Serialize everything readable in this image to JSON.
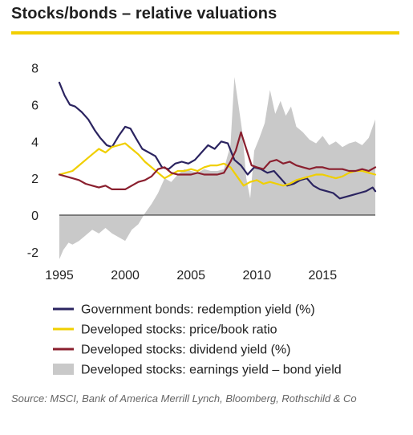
{
  "header": {
    "title": "Stocks/bonds – relative valuations"
  },
  "colors": {
    "title_rule": "#f2cf00",
    "gov_bonds": "#2b2460",
    "pb": "#f0cf00",
    "dividend": "#8a1f2e",
    "earnings_gap": "#c9c9c9",
    "zero_line": "#222222"
  },
  "chart_data": {
    "type": "line",
    "title": "Stocks/bonds – relative valuations",
    "xlabel": "",
    "ylabel": "",
    "x_ticks": [
      1995,
      2000,
      2005,
      2010,
      2015
    ],
    "y_ticks": [
      -2,
      0,
      2,
      4,
      6,
      8
    ],
    "xlim": [
      1995,
      2019
    ],
    "ylim": [
      -2.4,
      8.2
    ],
    "grid": false,
    "legend_position": "bottom",
    "series": [
      {
        "name": "Government bonds: redemption yield (%)",
        "color": "#2b2460",
        "x": [
          1995.0,
          1995.4,
          1995.8,
          1996.2,
          1996.7,
          1997.2,
          1997.7,
          1998.1,
          1998.6,
          1999.0,
          1999.5,
          2000.0,
          2000.4,
          2000.8,
          2001.3,
          2001.8,
          2002.3,
          2002.8,
          2003.3,
          2003.8,
          2004.3,
          2004.8,
          2005.3,
          2005.8,
          2006.3,
          2006.8,
          2007.3,
          2007.8,
          2008.3,
          2008.8,
          2009.3,
          2009.8,
          2010.3,
          2010.8,
          2011.3,
          2011.8,
          2012.3,
          2012.8,
          2013.3,
          2013.8,
          2014.3,
          2014.8,
          2015.3,
          2015.8,
          2016.3,
          2016.8,
          2017.3,
          2017.8,
          2018.3,
          2018.8,
          2019.0
        ],
        "values": [
          7.2,
          6.5,
          6.0,
          5.9,
          5.6,
          5.2,
          4.6,
          4.2,
          3.8,
          3.7,
          4.3,
          4.8,
          4.7,
          4.2,
          3.6,
          3.4,
          3.2,
          2.6,
          2.5,
          2.8,
          2.9,
          2.8,
          3.0,
          3.4,
          3.8,
          3.6,
          4.0,
          3.9,
          3.0,
          2.7,
          2.2,
          2.6,
          2.5,
          2.3,
          2.4,
          2.0,
          1.6,
          1.7,
          1.9,
          2.0,
          1.6,
          1.4,
          1.3,
          1.2,
          0.9,
          1.0,
          1.1,
          1.2,
          1.3,
          1.5,
          1.3
        ]
      },
      {
        "name": "Developed stocks: price/book ratio",
        "color": "#f0cf00",
        "x": [
          1995.0,
          1995.5,
          1996.0,
          1996.5,
          1997.0,
          1997.5,
          1998.0,
          1998.5,
          1999.0,
          1999.5,
          2000.0,
          2000.5,
          2001.0,
          2001.5,
          2002.0,
          2002.5,
          2003.0,
          2003.5,
          2004.0,
          2004.5,
          2005.0,
          2005.5,
          2006.0,
          2006.5,
          2007.0,
          2007.5,
          2008.0,
          2008.5,
          2009.0,
          2009.5,
          2010.0,
          2010.5,
          2011.0,
          2011.5,
          2012.0,
          2012.5,
          2013.0,
          2013.5,
          2014.0,
          2014.5,
          2015.0,
          2015.5,
          2016.0,
          2016.5,
          2017.0,
          2017.5,
          2018.0,
          2018.5,
          2019.0
        ],
        "values": [
          2.2,
          2.3,
          2.4,
          2.7,
          3.0,
          3.3,
          3.6,
          3.4,
          3.7,
          3.8,
          3.9,
          3.6,
          3.3,
          2.9,
          2.6,
          2.3,
          2.0,
          2.2,
          2.4,
          2.4,
          2.5,
          2.4,
          2.6,
          2.7,
          2.7,
          2.8,
          2.6,
          2.1,
          1.6,
          1.8,
          1.9,
          1.7,
          1.8,
          1.7,
          1.6,
          1.7,
          1.9,
          2.0,
          2.1,
          2.2,
          2.2,
          2.1,
          2.0,
          2.1,
          2.3,
          2.4,
          2.4,
          2.3,
          2.2
        ]
      },
      {
        "name": "Developed stocks: dividend yield (%)",
        "color": "#8a1f2e",
        "x": [
          1995.0,
          1995.5,
          1996.0,
          1996.5,
          1997.0,
          1997.5,
          1998.0,
          1998.5,
          1999.0,
          1999.5,
          2000.0,
          2000.5,
          2001.0,
          2001.5,
          2002.0,
          2002.5,
          2003.0,
          2003.5,
          2004.0,
          2004.5,
          2005.0,
          2005.5,
          2006.0,
          2006.5,
          2007.0,
          2007.5,
          2008.0,
          2008.4,
          2008.8,
          2009.2,
          2009.6,
          2010.0,
          2010.5,
          2011.0,
          2011.5,
          2012.0,
          2012.5,
          2013.0,
          2013.5,
          2014.0,
          2014.5,
          2015.0,
          2015.5,
          2016.0,
          2016.5,
          2017.0,
          2017.5,
          2018.0,
          2018.5,
          2019.0
        ],
        "values": [
          2.2,
          2.1,
          2.0,
          1.9,
          1.7,
          1.6,
          1.5,
          1.6,
          1.4,
          1.4,
          1.4,
          1.6,
          1.8,
          1.9,
          2.1,
          2.5,
          2.6,
          2.3,
          2.2,
          2.2,
          2.2,
          2.3,
          2.2,
          2.2,
          2.2,
          2.3,
          2.9,
          3.5,
          4.5,
          3.6,
          2.7,
          2.6,
          2.5,
          2.9,
          3.0,
          2.8,
          2.9,
          2.7,
          2.6,
          2.5,
          2.6,
          2.6,
          2.5,
          2.5,
          2.5,
          2.4,
          2.4,
          2.5,
          2.4,
          2.6
        ]
      },
      {
        "name": "Developed stocks: earnings yield – bond yield",
        "type": "area",
        "color": "#c9c9c9",
        "x": [
          1995.0,
          1995.3,
          1995.7,
          1996.0,
          1996.5,
          1997.0,
          1997.5,
          1998.0,
          1998.5,
          1999.0,
          1999.5,
          2000.0,
          2000.5,
          2001.0,
          2001.5,
          2002.0,
          2002.5,
          2003.0,
          2003.5,
          2004.0,
          2004.5,
          2005.0,
          2005.5,
          2006.0,
          2006.5,
          2007.0,
          2007.5,
          2008.0,
          2008.3,
          2008.6,
          2008.9,
          2009.2,
          2009.5,
          2009.8,
          2010.2,
          2010.6,
          2011.0,
          2011.4,
          2011.8,
          2012.2,
          2012.6,
          2013.0,
          2013.5,
          2014.0,
          2014.5,
          2015.0,
          2015.5,
          2016.0,
          2016.5,
          2017.0,
          2017.5,
          2018.0,
          2018.5,
          2019.0
        ],
        "values": [
          -2.4,
          -1.9,
          -1.5,
          -1.6,
          -1.4,
          -1.1,
          -0.8,
          -1.0,
          -0.7,
          -1.0,
          -1.2,
          -1.4,
          -0.8,
          -0.5,
          0.1,
          0.6,
          1.2,
          2.0,
          1.8,
          2.2,
          2.5,
          2.4,
          2.3,
          2.5,
          2.4,
          2.4,
          2.5,
          3.8,
          7.5,
          6.0,
          4.5,
          2.0,
          0.9,
          3.5,
          4.2,
          5.0,
          6.8,
          5.5,
          6.2,
          5.4,
          5.9,
          4.8,
          4.5,
          4.1,
          3.9,
          4.3,
          3.8,
          4.0,
          3.7,
          3.9,
          4.0,
          3.8,
          4.2,
          5.2
        ]
      }
    ]
  },
  "legend": {
    "items": [
      {
        "label": "Government bonds: redemption yield (%)",
        "kind": "line",
        "color": "#2b2460"
      },
      {
        "label": "Developed stocks: price/book ratio",
        "kind": "line",
        "color": "#f0cf00"
      },
      {
        "label": "Developed stocks: dividend yield (%)",
        "kind": "line",
        "color": "#8a1f2e"
      },
      {
        "label": "Developed stocks: earnings yield – bond yield",
        "kind": "patch",
        "color": "#c9c9c9"
      }
    ]
  },
  "footer": {
    "source": "Source: MSCI, Bank of America Merrill Lynch, Bloomberg, Rothschild & Co"
  }
}
